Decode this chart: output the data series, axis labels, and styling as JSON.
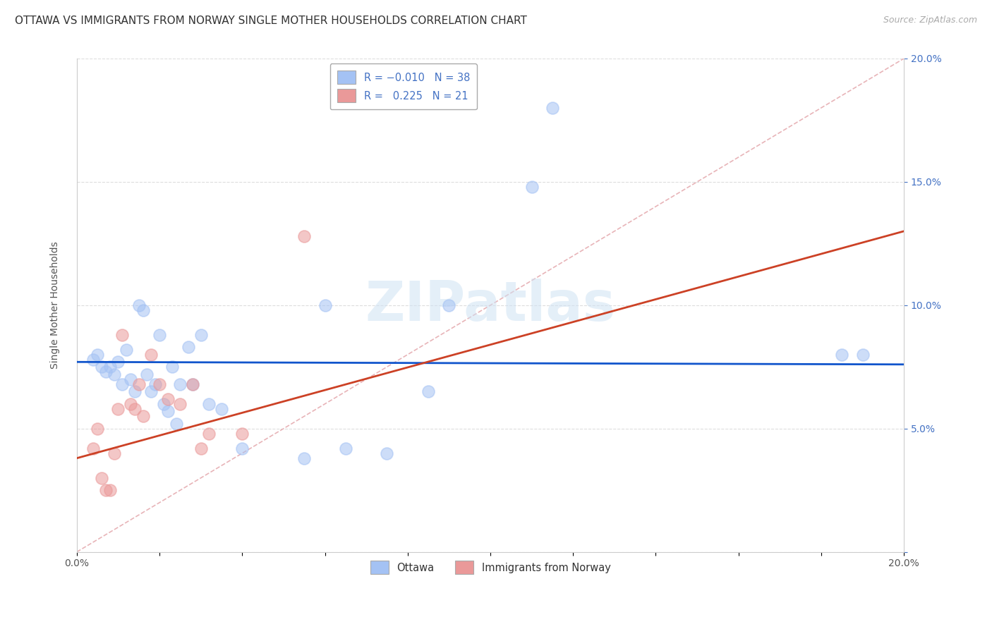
{
  "title": "OTTAWA VS IMMIGRANTS FROM NORWAY SINGLE MOTHER HOUSEHOLDS CORRELATION CHART",
  "source": "Source: ZipAtlas.com",
  "ylabel": "Single Mother Households",
  "xlim": [
    0,
    0.2
  ],
  "ylim": [
    0,
    0.2
  ],
  "ottawa_R": -0.01,
  "ottawa_N": 38,
  "norway_R": 0.225,
  "norway_N": 21,
  "ottawa_color": "#a4c2f4",
  "norway_color": "#ea9999",
  "ottawa_line_color": "#1155cc",
  "norway_line_color": "#cc4125",
  "ref_line_color": "#cccccc",
  "watermark": "ZIPatlas",
  "ottawa_x": [
    0.004,
    0.005,
    0.006,
    0.007,
    0.008,
    0.009,
    0.01,
    0.011,
    0.012,
    0.013,
    0.014,
    0.015,
    0.016,
    0.017,
    0.018,
    0.019,
    0.02,
    0.021,
    0.022,
    0.023,
    0.024,
    0.025,
    0.027,
    0.028,
    0.03,
    0.032,
    0.035,
    0.04,
    0.055,
    0.06,
    0.065,
    0.075,
    0.085,
    0.09,
    0.11,
    0.115,
    0.185,
    0.19
  ],
  "ottawa_y": [
    0.078,
    0.08,
    0.075,
    0.073,
    0.075,
    0.072,
    0.077,
    0.068,
    0.082,
    0.07,
    0.065,
    0.1,
    0.098,
    0.072,
    0.065,
    0.068,
    0.088,
    0.06,
    0.057,
    0.075,
    0.052,
    0.068,
    0.083,
    0.068,
    0.088,
    0.06,
    0.058,
    0.042,
    0.038,
    0.1,
    0.042,
    0.04,
    0.065,
    0.1,
    0.148,
    0.18,
    0.08,
    0.08
  ],
  "norway_x": [
    0.004,
    0.005,
    0.006,
    0.007,
    0.008,
    0.009,
    0.01,
    0.011,
    0.013,
    0.014,
    0.015,
    0.016,
    0.018,
    0.02,
    0.022,
    0.025,
    0.028,
    0.03,
    0.032,
    0.04,
    0.055
  ],
  "norway_y": [
    0.042,
    0.05,
    0.03,
    0.025,
    0.025,
    0.04,
    0.058,
    0.088,
    0.06,
    0.058,
    0.068,
    0.055,
    0.08,
    0.068,
    0.062,
    0.06,
    0.068,
    0.042,
    0.048,
    0.048,
    0.128
  ],
  "background_color": "#ffffff",
  "grid_color": "#dddddd",
  "title_fontsize": 11,
  "axis_label_fontsize": 10,
  "tick_fontsize": 10,
  "legend_fontsize": 10.5
}
